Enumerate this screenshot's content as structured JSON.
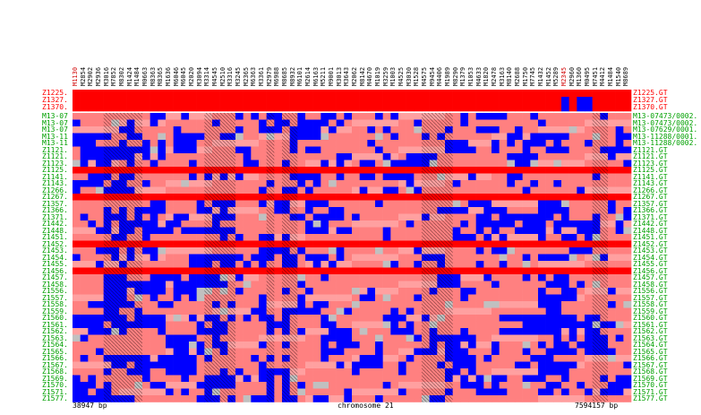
{
  "colors": {
    "major": "#ff0000",
    "hom": "#0000ff",
    "het": "#ff8080",
    "het_light": "#ffa0a0",
    "missing": "#c0c0c0",
    "label_green": "#00a000",
    "label_red": "#ff0000",
    "hatch": "#000000"
  },
  "markers": [
    {
      "name": "M1130",
      "color": "#d00000"
    },
    {
      "name": "M2854",
      "color": "#000000"
    },
    {
      "name": "M2902",
      "color": "#000000"
    },
    {
      "name": "M2936",
      "color": "#000000"
    },
    {
      "name": "M3016",
      "color": "#000000"
    },
    {
      "name": "M7852",
      "color": "#000000"
    },
    {
      "name": "M8302",
      "color": "#000000"
    },
    {
      "name": "M1424",
      "color": "#000000"
    },
    {
      "name": "M1484",
      "color": "#000000"
    },
    {
      "name": "M0663",
      "color": "#000000"
    },
    {
      "name": "M8363",
      "color": "#000000"
    },
    {
      "name": "M8365",
      "color": "#000000"
    },
    {
      "name": "M1636",
      "color": "#000000"
    },
    {
      "name": "M6046",
      "color": "#000000"
    },
    {
      "name": "M6045",
      "color": "#000000"
    },
    {
      "name": "M2020",
      "color": "#000000"
    },
    {
      "name": "M3094",
      "color": "#000000"
    },
    {
      "name": "M3314",
      "color": "#000000"
    },
    {
      "name": "M4545",
      "color": "#000000"
    },
    {
      "name": "M2510",
      "color": "#000000"
    },
    {
      "name": "M3316",
      "color": "#000000"
    },
    {
      "name": "M3245",
      "color": "#000000"
    },
    {
      "name": "M2365",
      "color": "#000000"
    },
    {
      "name": "M6363",
      "color": "#000000"
    },
    {
      "name": "M3361",
      "color": "#000000"
    },
    {
      "name": "M2979",
      "color": "#000000"
    },
    {
      "name": "M6988",
      "color": "#000000"
    },
    {
      "name": "M8685",
      "color": "#000000"
    },
    {
      "name": "M8932",
      "color": "#000000"
    },
    {
      "name": "M6101",
      "color": "#000000"
    },
    {
      "name": "M2614",
      "color": "#000000"
    },
    {
      "name": "M6163",
      "color": "#000000"
    },
    {
      "name": "M5211",
      "color": "#000000"
    },
    {
      "name": "M9001",
      "color": "#000000"
    },
    {
      "name": "M3013",
      "color": "#000000"
    },
    {
      "name": "M3643",
      "color": "#000000"
    },
    {
      "name": "M2062",
      "color": "#000000"
    },
    {
      "name": "M8142",
      "color": "#000000"
    },
    {
      "name": "M4670",
      "color": "#000000"
    },
    {
      "name": "M1019",
      "color": "#000000"
    },
    {
      "name": "M3259",
      "color": "#000000"
    },
    {
      "name": "M1003",
      "color": "#000000"
    },
    {
      "name": "M4525",
      "color": "#000000"
    },
    {
      "name": "M3030",
      "color": "#000000"
    },
    {
      "name": "M1528",
      "color": "#000000"
    },
    {
      "name": "M4575",
      "color": "#000000"
    },
    {
      "name": "M9454",
      "color": "#000000"
    },
    {
      "name": "M4406",
      "color": "#000000"
    },
    {
      "name": "M1989",
      "color": "#000000"
    },
    {
      "name": "M8290",
      "color": "#000000"
    },
    {
      "name": "M1379",
      "color": "#000000"
    },
    {
      "name": "M1053",
      "color": "#000000"
    },
    {
      "name": "M4633",
      "color": "#000000"
    },
    {
      "name": "M1820",
      "color": "#000000"
    },
    {
      "name": "M2478",
      "color": "#000000"
    },
    {
      "name": "M3163",
      "color": "#000000"
    },
    {
      "name": "M8140",
      "color": "#000000"
    },
    {
      "name": "M2688",
      "color": "#000000"
    },
    {
      "name": "M1750",
      "color": "#000000"
    },
    {
      "name": "M7745",
      "color": "#000000"
    },
    {
      "name": "M1432",
      "color": "#000000"
    },
    {
      "name": "M1452",
      "color": "#000000"
    },
    {
      "name": "M5289",
      "color": "#000000"
    },
    {
      "name": "M2345",
      "color": "#d00000"
    },
    {
      "name": "M2960",
      "color": "#000000"
    },
    {
      "name": "M1360",
      "color": "#000000"
    },
    {
      "name": "M0495",
      "color": "#000000"
    },
    {
      "name": "M7451",
      "color": "#000000"
    },
    {
      "name": "M4412",
      "color": "#000000"
    },
    {
      "name": "M1484",
      "color": "#000000"
    },
    {
      "name": "M1540",
      "color": "#000000"
    },
    {
      "name": "M8689",
      "color": "#000000"
    }
  ],
  "rows": [
    {
      "left": "Z1225.",
      "right": "Z1225.GT",
      "color": "#ff0000",
      "hl": true
    },
    {
      "left": "Z1327.",
      "right": "Z1327.GT",
      "color": "#ff0000",
      "hl": true
    },
    {
      "left": "Z1370.",
      "right": "Z1370.GT",
      "color": "#ff0000",
      "hl": true
    },
    {
      "left": "M13-07",
      "right": "M13-07473/0002.",
      "color": "#00a000"
    },
    {
      "left": "M13-07",
      "right": "M13-07473/0002.",
      "color": "#00a000"
    },
    {
      "left": "M13-07",
      "right": "M13-07629/0001.",
      "color": "#00a000"
    },
    {
      "left": "M13-11",
      "right": "M13-11288/0001.",
      "color": "#00a000"
    },
    {
      "left": "M13-11",
      "right": "M13-11288/0002.",
      "color": "#00a000"
    },
    {
      "left": "Z1121.",
      "right": "Z1121.GT",
      "color": "#00a000"
    },
    {
      "left": "Z1121.",
      "right": "Z1121.GT",
      "color": "#00a000"
    },
    {
      "left": "Z1123.",
      "right": "Z1123.GT",
      "color": "#00a000"
    },
    {
      "left": "Z1125.",
      "right": "Z1125.GT",
      "color": "#00a000"
    },
    {
      "left": "Z1141.",
      "right": "Z1141.GT",
      "color": "#00a000"
    },
    {
      "left": "Z1143.",
      "right": "Z1143.GT",
      "color": "#00a000"
    },
    {
      "left": "Z1266.",
      "right": "Z1266.GT",
      "color": "#00a000"
    },
    {
      "left": "Z1267.",
      "right": "Z1267.GT",
      "color": "#00a000"
    },
    {
      "left": "Z1357.",
      "right": "Z1357.GT",
      "color": "#00a000"
    },
    {
      "left": "Z1366.",
      "right": "Z1366.GT",
      "color": "#00a000"
    },
    {
      "left": "Z1371.",
      "right": "Z1371.GT",
      "color": "#00a000"
    },
    {
      "left": "Z1442.",
      "right": "Z1442.GT",
      "color": "#00a000"
    },
    {
      "left": "Z1448.",
      "right": "Z1448.GT",
      "color": "#00a000"
    },
    {
      "left": "Z1451.",
      "right": "Z1451.GT",
      "color": "#00a000"
    },
    {
      "left": "Z1452.",
      "right": "Z1452.GT",
      "color": "#00a000"
    },
    {
      "left": "Z1453.",
      "right": "Z1453.GT",
      "color": "#00a000"
    },
    {
      "left": "Z1454.",
      "right": "Z1454.GT",
      "color": "#00a000"
    },
    {
      "left": "Z1455.",
      "right": "Z1455.GT",
      "color": "#00a000"
    },
    {
      "left": "Z1456.",
      "right": "Z1456.GT",
      "color": "#00a000"
    },
    {
      "left": "Z1457.",
      "right": "Z1457.GT",
      "color": "#00a000"
    },
    {
      "left": "Z1458.",
      "right": "Z1458.GT",
      "color": "#00a000"
    },
    {
      "left": "Z1556.",
      "right": "Z1556.GT",
      "color": "#00a000"
    },
    {
      "left": "Z1557.",
      "right": "Z1557.GT",
      "color": "#00a000"
    },
    {
      "left": "Z1558.",
      "right": "Z1558.GT",
      "color": "#00a000"
    },
    {
      "left": "Z1559.",
      "right": "Z1559.GT",
      "color": "#00a000"
    },
    {
      "left": "Z1560.",
      "right": "Z1560.GT",
      "color": "#00a000"
    },
    {
      "left": "Z1561.",
      "right": "Z1561.GT",
      "color": "#00a000"
    },
    {
      "left": "Z1562.",
      "right": "Z1562.GT",
      "color": "#00a000"
    },
    {
      "left": "Z1563.",
      "right": "Z1563.GT",
      "color": "#00a000"
    },
    {
      "left": "Z1564.",
      "right": "Z1564.GT",
      "color": "#00a000"
    },
    {
      "left": "Z1565.",
      "right": "Z1565.GT",
      "color": "#00a000"
    },
    {
      "left": "Z1566.",
      "right": "Z1566.GT",
      "color": "#00a000"
    },
    {
      "left": "Z1567.",
      "right": "Z1567.GT",
      "color": "#00a000"
    },
    {
      "left": "Z1568.",
      "right": "Z1568.GT",
      "color": "#00a000"
    },
    {
      "left": "Z1569.",
      "right": "Z1569.GT",
      "color": "#00a000"
    },
    {
      "left": "Z1570.",
      "right": "Z1570.GT",
      "color": "#00a000"
    },
    {
      "left": "Z1571.",
      "right": "Z1571.GT",
      "color": "#00a000"
    },
    {
      "left": "Z1577.",
      "right": "Z1577.GT",
      "color": "#00a000"
    }
  ],
  "red_band_rows": [
    8,
    12,
    19,
    23
  ],
  "hatch_columns": [
    4,
    5,
    6,
    7,
    8,
    17,
    18,
    19,
    20,
    25,
    27,
    28,
    45,
    46,
    47,
    48,
    67,
    68
  ],
  "footer": {
    "start": "38947 bp",
    "chromosome": "chromosome 21",
    "end": "7594157 bp"
  }
}
